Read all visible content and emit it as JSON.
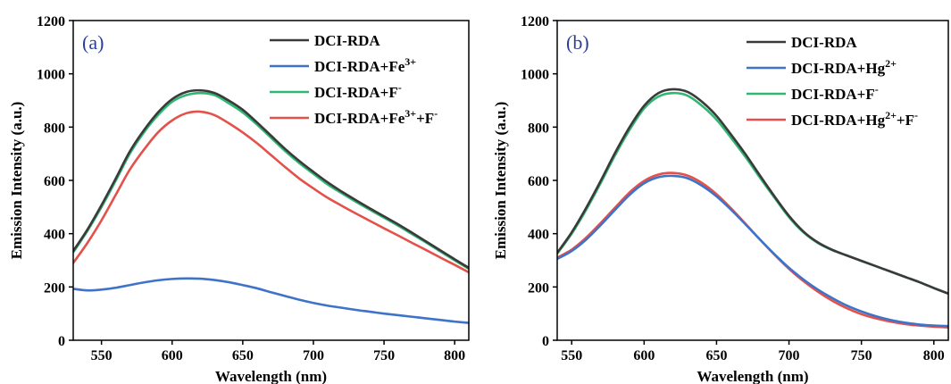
{
  "figure": {
    "panels": [
      {
        "panel_label": "(a)",
        "legend": [
          {
            "base": "DCI-RDA",
            "parts": [
              {
                "text": "DCI-RDA"
              }
            ]
          },
          {
            "base": "DCI-RDA+Fe3+",
            "parts": [
              {
                "text": "DCI-RDA+Fe"
              },
              {
                "text": "3+",
                "sup": true
              }
            ]
          },
          {
            "base": "DCI-RDA+F-",
            "parts": [
              {
                "text": "DCI-RDA+F"
              },
              {
                "text": "-",
                "sup": true
              }
            ]
          },
          {
            "base": "DCI-RDA+Fe3++F-",
            "parts": [
              {
                "text": "DCI-RDA+Fe"
              },
              {
                "text": "3+",
                "sup": true
              },
              {
                "text": "+F"
              },
              {
                "text": "-",
                "sup": true
              }
            ]
          }
        ]
      },
      {
        "panel_label": "(b)",
        "legend": [
          {
            "base": "DCI-RDA",
            "parts": [
              {
                "text": "DCI-RDA"
              }
            ]
          },
          {
            "base": "DCI-RDA+Hg2+",
            "parts": [
              {
                "text": "DCI-RDA+Hg"
              },
              {
                "text": "2+",
                "sup": true
              }
            ]
          },
          {
            "base": "DCI-RDA+F-",
            "parts": [
              {
                "text": "DCI-RDA+F"
              },
              {
                "text": "-",
                "sup": true
              }
            ]
          },
          {
            "base": "DCI-RDA+Hg2++F-",
            "parts": [
              {
                "text": "DCI-RDA+Hg"
              },
              {
                "text": "2+",
                "sup": true
              },
              {
                "text": "+F"
              },
              {
                "text": "-",
                "sup": true
              }
            ]
          }
        ]
      }
    ]
  },
  "chart_data": [
    {
      "type": "line",
      "title": "",
      "xlabel": "Wavelength (nm)",
      "ylabel": "Emission Intensity (a.u.)",
      "xlim": [
        530,
        810
      ],
      "ylim": [
        0,
        1200
      ],
      "xticks": [
        550,
        600,
        650,
        700,
        750,
        800
      ],
      "yticks": [
        0,
        200,
        400,
        600,
        800,
        1000,
        1200
      ],
      "grid": false,
      "legend_position": "top-right",
      "x": [
        530,
        540,
        550,
        560,
        570,
        580,
        590,
        600,
        610,
        620,
        630,
        640,
        650,
        660,
        670,
        680,
        690,
        700,
        710,
        720,
        730,
        740,
        750,
        760,
        770,
        780,
        790,
        800,
        810
      ],
      "series": [
        {
          "name": "DCI-RDA+Fe3+",
          "color": "#3e73c9",
          "values": [
            193,
            187,
            190,
            197,
            207,
            217,
            225,
            230,
            232,
            231,
            226,
            218,
            207,
            195,
            180,
            166,
            152,
            140,
            130,
            122,
            114,
            107,
            100,
            94,
            88,
            82,
            76,
            70,
            65
          ]
        },
        {
          "name": "DCI-RDA+Fe3++F-",
          "color": "#e4504a",
          "values": [
            290,
            365,
            450,
            545,
            640,
            715,
            780,
            825,
            852,
            858,
            845,
            815,
            780,
            740,
            695,
            650,
            607,
            570,
            535,
            505,
            476,
            448,
            420,
            393,
            365,
            338,
            310,
            283,
            255
          ]
        },
        {
          "name": "DCI-RDA+F-",
          "color": "#2eb872",
          "values": [
            330,
            410,
            500,
            598,
            700,
            780,
            845,
            895,
            920,
            928,
            920,
            890,
            855,
            810,
            760,
            710,
            665,
            625,
            585,
            552,
            520,
            490,
            460,
            430,
            398,
            366,
            333,
            300,
            268
          ]
        },
        {
          "name": "DCI-RDA",
          "color": "#3a3a3a",
          "values": [
            335,
            415,
            507,
            606,
            708,
            788,
            855,
            905,
            932,
            938,
            928,
            900,
            865,
            818,
            768,
            718,
            673,
            632,
            593,
            558,
            526,
            495,
            465,
            435,
            403,
            370,
            337,
            304,
            272
          ]
        }
      ]
    },
    {
      "type": "line",
      "title": "",
      "xlabel": "Wavelength (nm)",
      "ylabel": "Emission Intensity (a.u.)",
      "xlim": [
        540,
        810
      ],
      "ylim": [
        0,
        1200
      ],
      "xticks": [
        550,
        600,
        650,
        700,
        750,
        800
      ],
      "yticks": [
        0,
        200,
        400,
        600,
        800,
        1000,
        1200
      ],
      "grid": false,
      "legend_position": "top-right",
      "x": [
        540,
        550,
        560,
        570,
        580,
        590,
        600,
        610,
        620,
        630,
        640,
        650,
        660,
        670,
        680,
        690,
        700,
        710,
        720,
        730,
        740,
        750,
        760,
        770,
        780,
        790,
        800,
        810
      ],
      "series": [
        {
          "name": "DCI-RDA+Hg2++F-",
          "color": "#e4504a",
          "values": [
            310,
            340,
            385,
            440,
            498,
            555,
            598,
            622,
            628,
            618,
            590,
            548,
            495,
            437,
            378,
            321,
            268,
            222,
            182,
            148,
            120,
            98,
            82,
            70,
            61,
            55,
            51,
            48
          ]
        },
        {
          "name": "DCI-RDA+Hg2+",
          "color": "#3e73c9",
          "values": [
            305,
            335,
            378,
            432,
            490,
            546,
            589,
            612,
            617,
            608,
            580,
            540,
            490,
            435,
            378,
            323,
            272,
            228,
            190,
            158,
            130,
            108,
            90,
            76,
            66,
            59,
            55,
            53
          ]
        },
        {
          "name": "DCI-RDA+F-",
          "color": "#2eb872",
          "values": [
            325,
            400,
            490,
            590,
            695,
            790,
            870,
            915,
            928,
            918,
            880,
            828,
            760,
            688,
            610,
            535,
            462,
            405,
            365,
            338,
            318,
            298,
            278,
            258,
            238,
            218,
            196,
            175
          ]
        },
        {
          "name": "DCI-RDA",
          "color": "#3a3a3a",
          "values": [
            328,
            405,
            497,
            598,
            704,
            800,
            880,
            928,
            942,
            932,
            895,
            842,
            772,
            698,
            618,
            540,
            467,
            408,
            367,
            339,
            318,
            298,
            278,
            258,
            238,
            218,
            196,
            175
          ]
        }
      ]
    }
  ]
}
